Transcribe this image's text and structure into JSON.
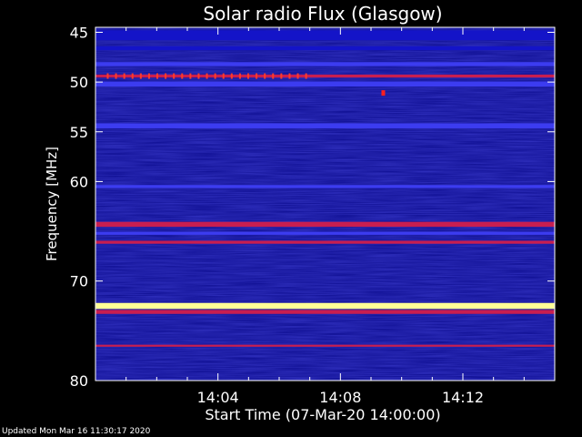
{
  "chart_data": {
    "type": "heatmap",
    "title": "Solar radio Flux (Glasgow)",
    "ylabel": "Frequency [MHz]",
    "xlabel": "Start Time (07-Mar-20 14:00:00)",
    "y_ticks": [
      45,
      50,
      55,
      60,
      70,
      80
    ],
    "ylim": [
      44.5,
      80
    ],
    "x_ticks": [
      "14:04",
      "14:08",
      "14:12"
    ],
    "x_tick_minutes": [
      4,
      8,
      12
    ],
    "xlim_minutes": [
      0,
      15
    ],
    "colors": {
      "background": "#000000",
      "low": "#1414c8",
      "mid": "#3c3cf0",
      "high": "#c81e50",
      "peak": "#ffff96"
    },
    "bands": [
      {
        "freq": 45.3,
        "intensity": "low",
        "width": 1.0
      },
      {
        "freq": 46.6,
        "intensity": "low",
        "width": 0.4
      },
      {
        "freq": 48.2,
        "intensity": "mid",
        "width": 0.4
      },
      {
        "freq": 49.4,
        "intensity": "high",
        "width": 0.3
      },
      {
        "freq": 50.2,
        "intensity": "mid",
        "width": 0.5
      },
      {
        "freq": 54.4,
        "intensity": "mid",
        "width": 0.5
      },
      {
        "freq": 60.5,
        "intensity": "mid",
        "width": 0.3
      },
      {
        "freq": 64.3,
        "intensity": "high",
        "width": 0.5
      },
      {
        "freq": 65.2,
        "intensity": "mid",
        "width": 0.3
      },
      {
        "freq": 66.1,
        "intensity": "high",
        "width": 0.3
      },
      {
        "freq": 72.5,
        "intensity": "peak",
        "width": 0.6
      },
      {
        "freq": 73.1,
        "intensity": "high",
        "width": 0.4
      },
      {
        "freq": 76.5,
        "intensity": "high",
        "width": 0.2
      }
    ],
    "spikes": {
      "freq": 49.4,
      "from_min": 0.4,
      "to_min": 6.9,
      "step_min": 0.27
    },
    "burst": {
      "freq": 51.1,
      "minute": 9.4
    },
    "updated": "Updated Mon Mar 16 11:30:17 2020"
  }
}
